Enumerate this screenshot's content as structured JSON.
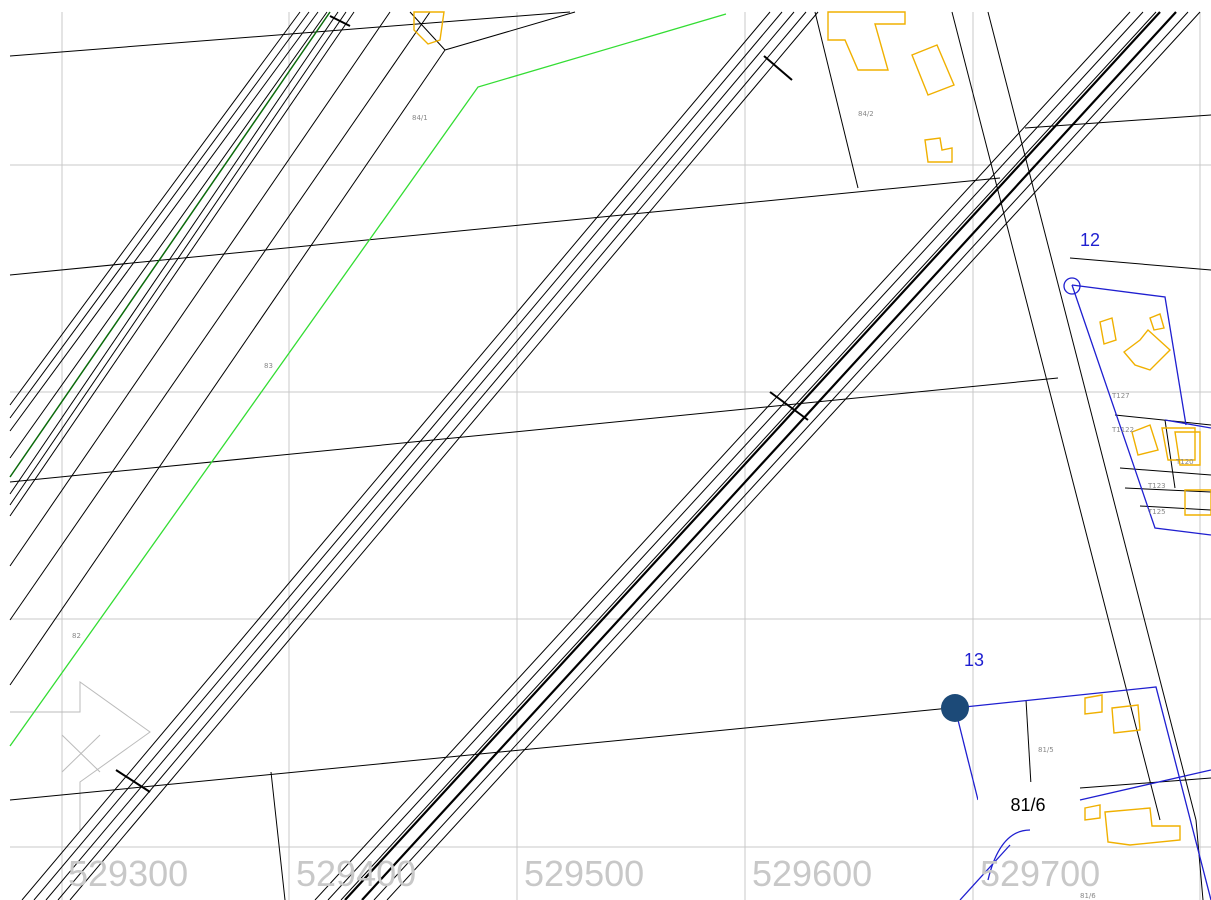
{
  "map": {
    "easting_labels": [
      "529300",
      "529400",
      "529500",
      "529600",
      "529700"
    ],
    "survey_points": [
      {
        "label": "12"
      },
      {
        "label": "13"
      }
    ],
    "highlighted_parcel": "81/6",
    "small_parcel_labels": [
      "84/1",
      "84/2",
      "83",
      "82",
      "T127",
      "T1122",
      "T120",
      "T123",
      "T125",
      "81/5",
      "81/6"
    ],
    "colors": {
      "grid": "#c8c8c8",
      "parcel_lines": "#000000",
      "boundary_blue": "#1f1fd0",
      "green_line": "#33dd33",
      "dark_green_line": "#0a6a0a",
      "buildings": "#f0b000",
      "marker": "#1c4a78"
    }
  }
}
